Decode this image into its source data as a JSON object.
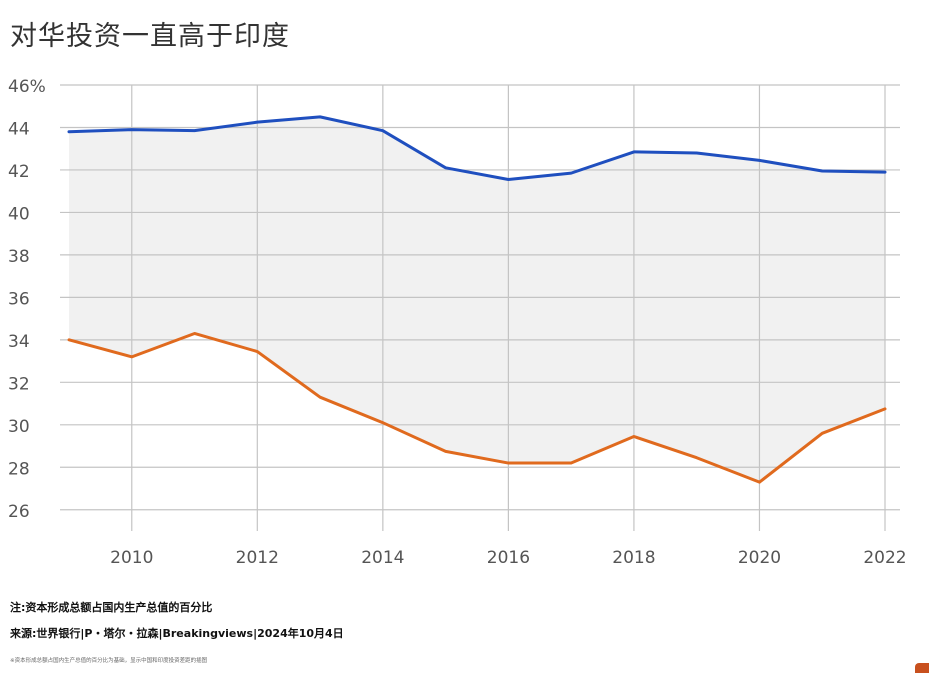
{
  "title": "对华投资一直高于印度",
  "note": "注:资本形成总额占国内生产总值的百分比",
  "source": "来源:世界银行|P・塔尔・拉森|Breakingviews|2024年10月4日",
  "caption": "※资本形成总额占国内生产总值的百分比为基础，显示中国和印度投资差距的插图",
  "colors": {
    "china": "#1f4fbf",
    "india": "#e06a1e",
    "fill": "#f1f1f1",
    "grid": "#c4c4c4",
    "tick": "#555555",
    "badge": "#c8501e"
  },
  "chart_data": {
    "type": "line",
    "x": [
      2009,
      2010,
      2011,
      2012,
      2013,
      2014,
      2015,
      2016,
      2017,
      2018,
      2019,
      2020,
      2021,
      2022
    ],
    "series": [
      {
        "values": [
          43.8,
          43.9,
          43.85,
          44.25,
          44.5,
          43.85,
          42.1,
          41.55,
          41.85,
          42.85,
          42.8,
          42.45,
          41.95,
          41.9
        ]
      },
      {
        "values": [
          34.0,
          33.2,
          34.3,
          33.45,
          31.3,
          30.1,
          28.75,
          28.2,
          28.2,
          29.45,
          28.45,
          27.3,
          29.6,
          30.75
        ]
      }
    ],
    "shade_between_series": true,
    "xlim": [
      2009,
      2022
    ],
    "ylim": [
      25,
      46
    ],
    "y_ticks": [
      46,
      44,
      42,
      40,
      38,
      36,
      34,
      32,
      30,
      28,
      26
    ],
    "y_tick_labels": [
      "46%",
      "44",
      "42",
      "40",
      "38",
      "36",
      "34",
      "32",
      "30",
      "28",
      "26"
    ],
    "x_ticks": [
      2010,
      2012,
      2014,
      2016,
      2018,
      2020,
      2022
    ],
    "x_tick_labels": [
      "2010",
      "2012",
      "2014",
      "2016",
      "2018",
      "2020",
      "2022"
    ],
    "grid": true
  }
}
